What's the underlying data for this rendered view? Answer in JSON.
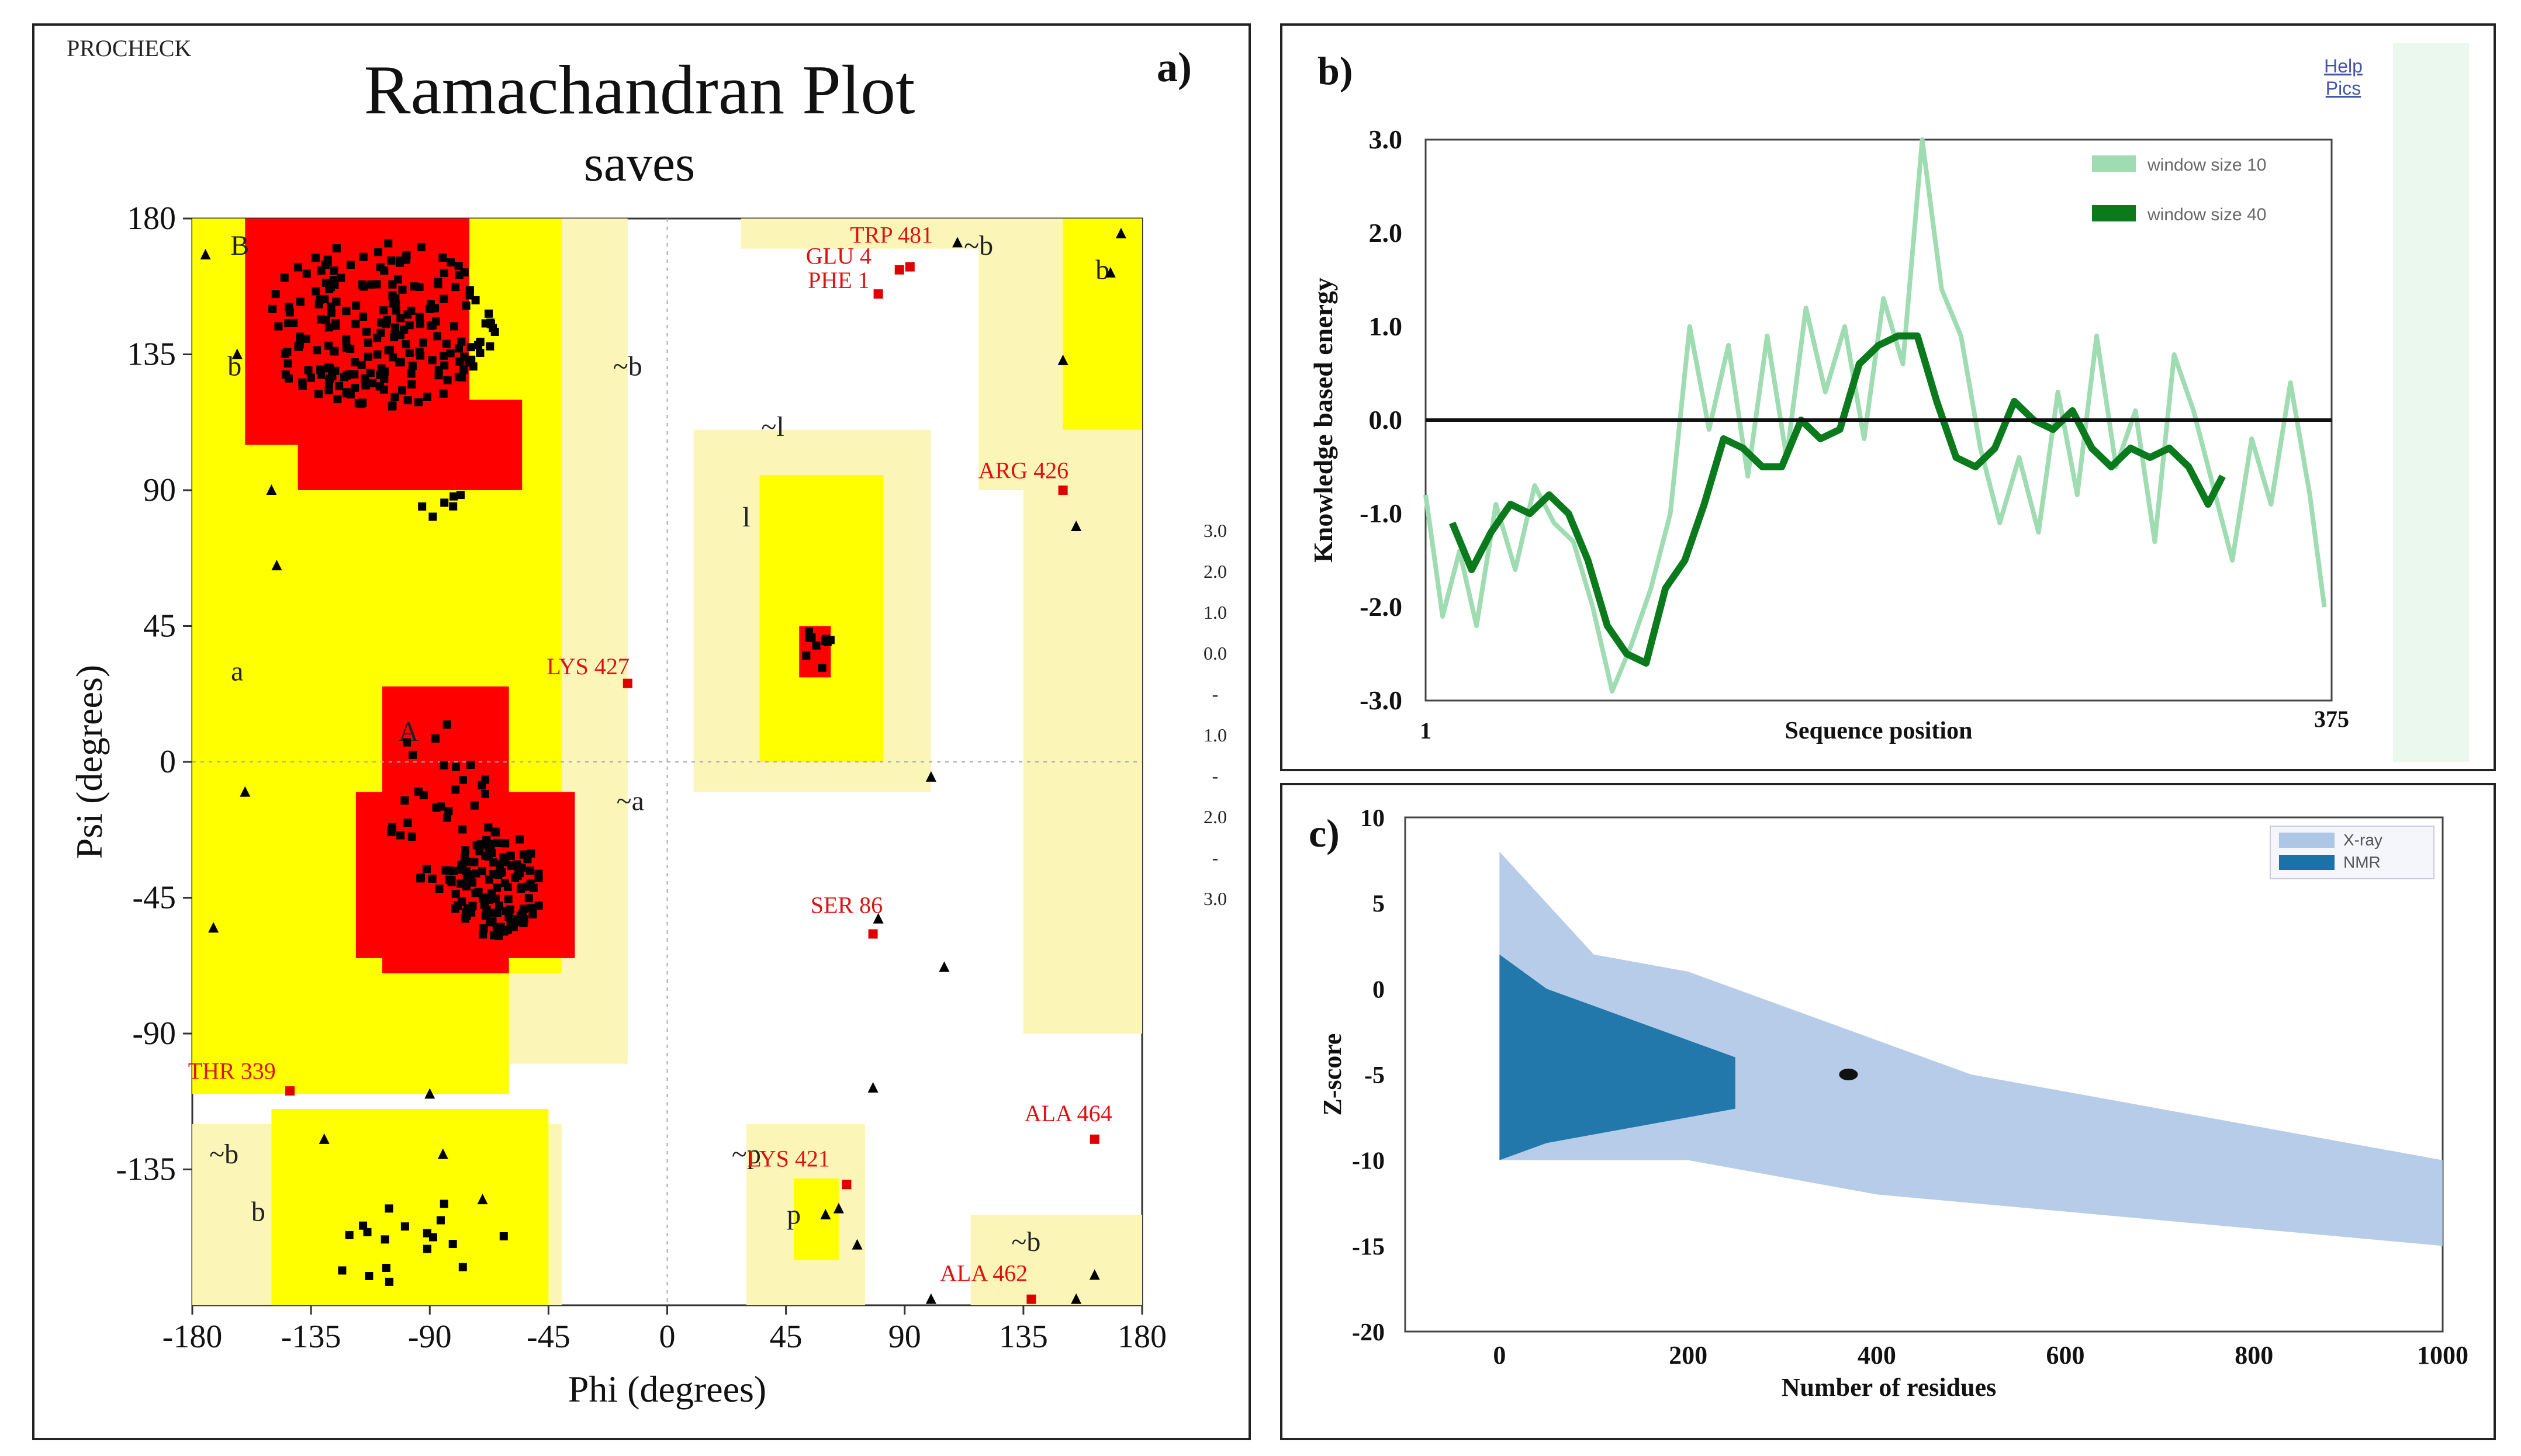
{
  "chart_data": [
    {
      "type": "scatter",
      "panel_label": "a)",
      "program": "PROCHECK",
      "title": "Ramachandran Plot",
      "subtitle": "saves",
      "xlabel": "Phi (degrees)",
      "ylabel": "Psi (degrees)",
      "xlim": [
        -180,
        180
      ],
      "ylim": [
        -180,
        180
      ],
      "x_ticks": [
        -180,
        -135,
        -90,
        -45,
        0,
        45,
        90,
        135,
        180
      ],
      "y_ticks": [
        180,
        135,
        90,
        45,
        0,
        -45,
        -90,
        -135
      ],
      "grid": false,
      "region_labels": [
        {
          "text": "B",
          "phi": -162,
          "psi": 168
        },
        {
          "text": "b",
          "phi": -164,
          "psi": 128
        },
        {
          "text": "~b",
          "phi": -15,
          "psi": 128
        },
        {
          "text": "~l",
          "phi": 40,
          "psi": 108
        },
        {
          "text": "l",
          "phi": 30,
          "psi": 78
        },
        {
          "text": "a",
          "phi": -163,
          "psi": 27
        },
        {
          "text": "A",
          "phi": -98,
          "psi": 7
        },
        {
          "text": "~a",
          "phi": -14,
          "psi": -16
        },
        {
          "text": "~b",
          "phi": -168,
          "psi": -133
        },
        {
          "text": "b",
          "phi": -155,
          "psi": -152
        },
        {
          "text": "~p",
          "phi": 30,
          "psi": -133
        },
        {
          "text": "p",
          "phi": 48,
          "psi": -153
        },
        {
          "text": "~b",
          "phi": 118,
          "psi": 168
        },
        {
          "text": "b",
          "phi": 165,
          "psi": 160
        },
        {
          "text": "~b",
          "phi": 136,
          "psi": -162
        }
      ],
      "outlier_labels": [
        {
          "text": "TRP 481",
          "phi": 85,
          "psi": 172
        },
        {
          "text": "GLU 4",
          "phi": 65,
          "psi": 165
        },
        {
          "text": "PHE 1",
          "phi": 65,
          "psi": 157
        },
        {
          "text": "ARG 426",
          "phi": 135,
          "psi": 94
        },
        {
          "text": "LYS 427",
          "phi": -30,
          "psi": 29
        },
        {
          "text": "SER 86",
          "phi": 68,
          "psi": -50
        },
        {
          "text": "THR 339",
          "phi": -165,
          "psi": -105
        },
        {
          "text": "ALA 464",
          "phi": 152,
          "psi": -119
        },
        {
          "text": "LYS 421",
          "phi": 46,
          "psi": -134
        },
        {
          "text": "ALA 462",
          "phi": 120,
          "psi": -172
        }
      ],
      "outlier_points": [
        [
          80,
          155
        ],
        [
          88,
          163
        ],
        [
          92,
          164
        ],
        [
          150,
          90
        ],
        [
          -15,
          26
        ],
        [
          78,
          -57
        ],
        [
          -143,
          -109
        ],
        [
          162,
          -125
        ],
        [
          68,
          -140
        ],
        [
          138,
          -178
        ]
      ],
      "colorbar_labels": [
        "3.0",
        "2.0",
        "1.0",
        "0.0",
        "-",
        "1.0",
        "-",
        "2.0",
        "-",
        "3.0"
      ]
    },
    {
      "type": "line",
      "panel_label": "b)",
      "xlabel": "Sequence position",
      "ylabel": "Knowledge based energy",
      "x_tick_labels": [
        "1",
        "375"
      ],
      "y_tick_labels": [
        "3.0",
        "2.0",
        "1.0",
        "0.0",
        "-1.0",
        "-2.0",
        "-3.0"
      ],
      "xlim": [
        1,
        375
      ],
      "ylim": [
        -3.0,
        3.0
      ],
      "zero_line": 0.0,
      "corner_links": [
        "Help",
        "Pics"
      ],
      "legend_position": "top-right",
      "series": [
        {
          "name": "window size 10",
          "color": "#9fdcb2",
          "x": [
            1,
            8,
            15,
            22,
            30,
            38,
            46,
            54,
            62,
            70,
            78,
            86,
            94,
            102,
            110,
            118,
            126,
            134,
            142,
            150,
            158,
            166,
            174,
            182,
            190,
            198,
            206,
            214,
            222,
            230,
            238,
            246,
            254,
            262,
            270,
            278,
            286,
            294,
            302,
            310,
            318,
            326,
            334,
            342,
            350,
            358,
            366,
            372
          ],
          "values": [
            -0.8,
            -2.1,
            -1.4,
            -2.2,
            -0.9,
            -1.6,
            -0.7,
            -1.1,
            -1.3,
            -2.0,
            -2.9,
            -2.4,
            -1.8,
            -1.0,
            1.0,
            -0.1,
            0.8,
            -0.6,
            0.9,
            -0.4,
            1.2,
            0.3,
            1.0,
            -0.2,
            1.3,
            0.6,
            3.0,
            1.4,
            0.9,
            -0.3,
            -1.1,
            -0.4,
            -1.2,
            0.3,
            -0.8,
            0.9,
            -0.5,
            0.1,
            -1.3,
            0.7,
            0.1,
            -0.7,
            -1.5,
            -0.2,
            -0.9,
            0.4,
            -0.8,
            -2.0
          ]
        },
        {
          "name": "window size 40",
          "color": "#0a7a1c",
          "x": [
            12,
            20,
            28,
            36,
            44,
            52,
            60,
            68,
            76,
            84,
            92,
            100,
            108,
            116,
            124,
            132,
            140,
            148,
            156,
            164,
            172,
            180,
            188,
            196,
            204,
            212,
            220,
            228,
            236,
            244,
            252,
            260,
            268,
            276,
            284,
            292,
            300,
            308,
            316,
            324,
            330
          ],
          "values": [
            -1.1,
            -1.6,
            -1.2,
            -0.9,
            -1.0,
            -0.8,
            -1.0,
            -1.5,
            -2.2,
            -2.5,
            -2.6,
            -1.8,
            -1.5,
            -0.9,
            -0.2,
            -0.3,
            -0.5,
            -0.5,
            0.0,
            -0.2,
            -0.1,
            0.6,
            0.8,
            0.9,
            0.9,
            0.2,
            -0.4,
            -0.5,
            -0.3,
            0.2,
            0.0,
            -0.1,
            0.1,
            -0.3,
            -0.5,
            -0.3,
            -0.4,
            -0.3,
            -0.5,
            -0.9,
            -0.6
          ]
        }
      ]
    },
    {
      "type": "scatter",
      "panel_label": "c)",
      "xlabel": "Number of residues",
      "ylabel": "Z-score",
      "x_ticks": [
        0,
        200,
        400,
        600,
        800,
        1000
      ],
      "y_ticks": [
        10,
        5,
        0,
        -5,
        -10,
        -15,
        -20
      ],
      "xlim": [
        -100,
        1000
      ],
      "ylim": [
        -20,
        10
      ],
      "legend_position": "top-right",
      "series": [
        {
          "name": "X-ray",
          "color": "#aec6e6",
          "envelope_x": [
            0,
            100,
            200,
            300,
            400,
            500,
            600,
            700,
            800,
            900,
            1000
          ],
          "upper": [
            8,
            2,
            1,
            -1,
            -3,
            -5,
            -6,
            -7,
            -8,
            -9,
            -10
          ],
          "lower": [
            -10,
            -10,
            -10,
            -11,
            -12,
            -12.5,
            -13,
            -13.5,
            -14,
            -14.5,
            -15
          ]
        },
        {
          "name": "NMR",
          "color": "#1a73a8",
          "envelope_x": [
            0,
            50,
            100,
            150,
            200,
            250
          ],
          "upper": [
            2,
            0,
            -1,
            -2,
            -3,
            -4
          ],
          "lower": [
            -10,
            -9,
            -8.5,
            -8,
            -7.5,
            -7
          ]
        }
      ],
      "highlight_point": {
        "x": 370,
        "y": -5
      }
    }
  ]
}
